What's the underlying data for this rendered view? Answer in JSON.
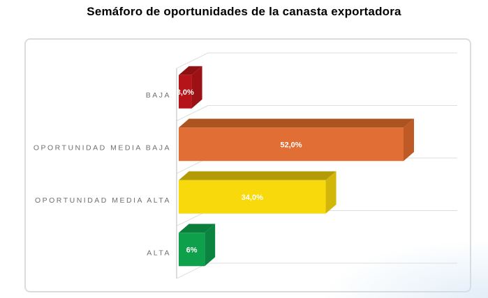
{
  "title": "Semáforo de oportunidades de la canasta exportadora",
  "chart_data": {
    "type": "bar",
    "orientation": "horizontal",
    "style": "3d",
    "title": "Semáforo de oportunidades de la canasta exportadora",
    "categories": [
      "BAJA",
      "OPORTUNIDAD MEDIA BAJA",
      "OPORTUNIDAD MEDIA ALTA",
      "ALTA"
    ],
    "values": [
      3.0,
      52.0,
      34.0,
      6.0
    ],
    "value_labels": [
      "3,0%",
      "52,0%",
      "34,0%",
      "6%"
    ],
    "xlabel": "",
    "ylabel": "",
    "xlim": [
      0,
      64
    ],
    "grid": true,
    "legend": false,
    "value_axis_tick_labels_visible": false,
    "series_colors": [
      {
        "name": "dark-red",
        "front": "#B51418",
        "top": "#8E1013",
        "side": "#9C1115"
      },
      {
        "name": "orange",
        "front": "#E06E35",
        "top": "#AC5420",
        "side": "#BE5A25"
      },
      {
        "name": "yellow",
        "front": "#F8D90B",
        "top": "#B29B06",
        "side": "#D2B609"
      },
      {
        "name": "green",
        "front": "#0FA04C",
        "top": "#0B7E3C",
        "side": "#0A8540"
      }
    ],
    "colors": {
      "grid": "#DEDEDE",
      "axis": "#C6C6C6",
      "category_label": "#6F6F6F",
      "value_label": "#FFFFFF",
      "title": "#000000",
      "frame_border": "#DCDCDC",
      "background": "#FFFFFF"
    }
  }
}
